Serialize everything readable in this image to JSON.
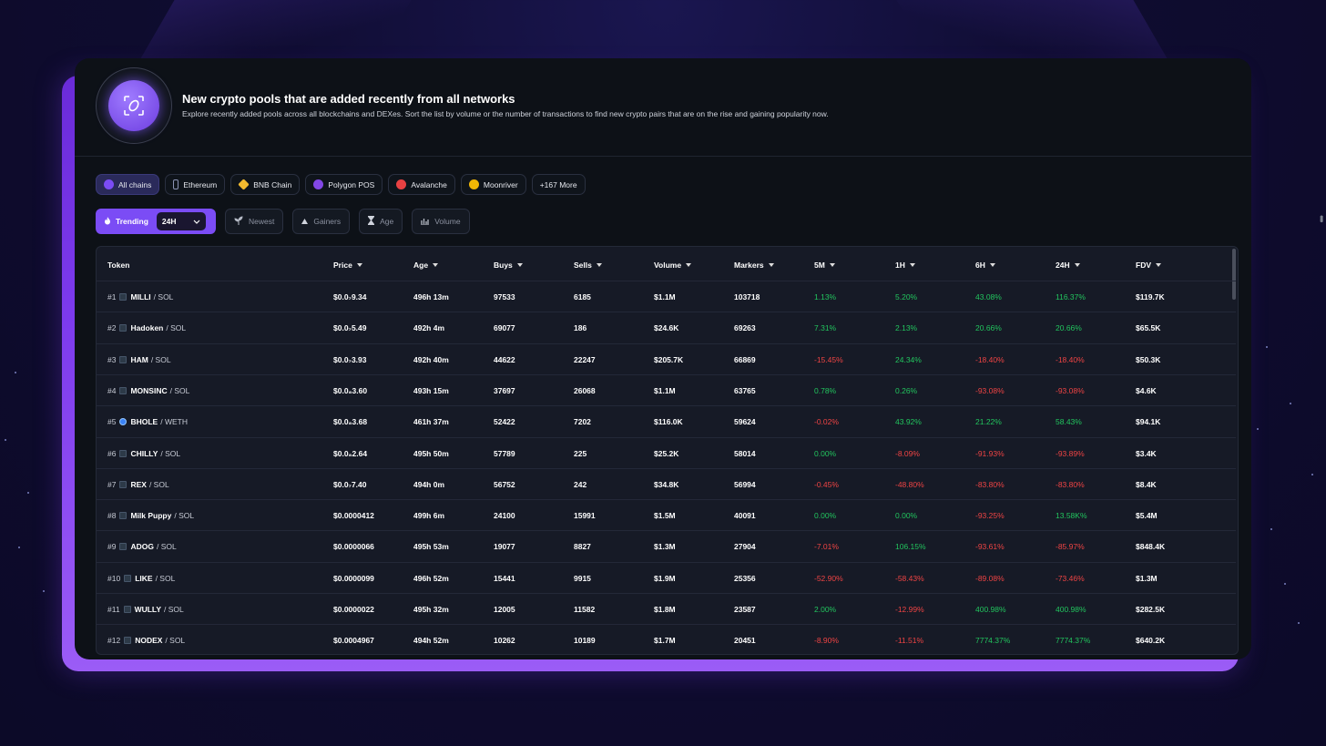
{
  "header": {
    "title": "New crypto pools that are added recently from all networks",
    "subtitle": "Explore recently added pools across all blockchains and DEXes. Sort the list by volume or the number of transactions to find new crypto pairs that are on the rise and gaining popularity now."
  },
  "chains": [
    {
      "label": "All chains",
      "icon": "all-chains-icon",
      "color": "#7b4cf5"
    },
    {
      "label": "Ethereum",
      "icon": "ethereum-icon",
      "color": "#8a92b2"
    },
    {
      "label": "BNB Chain",
      "icon": "bnb-icon",
      "color": "#f3ba2f"
    },
    {
      "label": "Polygon POS",
      "icon": "polygon-icon",
      "color": "#8247e5"
    },
    {
      "label": "Avalanche",
      "icon": "avalanche-icon",
      "color": "#e84142"
    },
    {
      "label": "Moonriver",
      "icon": "moonriver-icon",
      "color": "#f2b705"
    },
    {
      "label": "+167 More"
    }
  ],
  "filters": {
    "trending": "Trending",
    "timeframe": "24H",
    "newest": "Newest",
    "gainers": "Gainers",
    "age": "Age",
    "volume": "Volume"
  },
  "table": {
    "columns": [
      "Token",
      "Price",
      "Age",
      "Buys",
      "Sells",
      "Volume",
      "Markers",
      "5M",
      "1H",
      "6H",
      "24H",
      "FDV"
    ],
    "rows": [
      {
        "rank": "#1",
        "symbol": "MILLI",
        "quote": "/ SOL",
        "price": "$0.0₇9.34",
        "age": "496h 13m",
        "buys": "97533",
        "sells": "6185",
        "volume": "$1.1M",
        "makers": "103718",
        "m5": "1.13%",
        "h1": "5.20%",
        "h6": "43.08%",
        "h24": "116.37%",
        "fdv": "$119.7K",
        "icon": "sol"
      },
      {
        "rank": "#2",
        "symbol": "Hadoken",
        "quote": "/ SOL",
        "price": "$0.0₇5.49",
        "age": "492h 4m",
        "buys": "69077",
        "sells": "186",
        "volume": "$24.6K",
        "makers": "69263",
        "m5": "7.31%",
        "h1": "2.13%",
        "h6": "20.66%",
        "h24": "20.66%",
        "fdv": "$65.5K",
        "icon": "sol"
      },
      {
        "rank": "#3",
        "symbol": "HAM",
        "quote": "/ SOL",
        "price": "$0.0₇3.93",
        "age": "492h 40m",
        "buys": "44622",
        "sells": "22247",
        "volume": "$205.7K",
        "makers": "66869",
        "m5": "-15.45%",
        "h1": "24.34%",
        "h6": "-18.40%",
        "h24": "-18.40%",
        "fdv": "$50.3K",
        "icon": "sol"
      },
      {
        "rank": "#4",
        "symbol": "MONSINC",
        "quote": "/ SOL",
        "price": "$0.0₈3.60",
        "age": "493h 15m",
        "buys": "37697",
        "sells": "26068",
        "volume": "$1.1M",
        "makers": "63765",
        "m5": "0.78%",
        "h1": "0.26%",
        "h6": "-93.08%",
        "h24": "-93.08%",
        "fdv": "$4.6K",
        "icon": "sol"
      },
      {
        "rank": "#5",
        "symbol": "BHOLE",
        "quote": "/ WETH",
        "price": "$0.0₈3.68",
        "age": "461h 37m",
        "buys": "52422",
        "sells": "7202",
        "volume": "$116.0K",
        "makers": "59624",
        "m5": "-0.02%",
        "h1": "43.92%",
        "h6": "21.22%",
        "h24": "58.43%",
        "fdv": "$94.1K",
        "icon": "eth"
      },
      {
        "rank": "#6",
        "symbol": "CHILLY",
        "quote": "/ SOL",
        "price": "$0.0₈2.64",
        "age": "495h 50m",
        "buys": "57789",
        "sells": "225",
        "volume": "$25.2K",
        "makers": "58014",
        "m5": "0.00%",
        "h1": "-8.09%",
        "h6": "-91.93%",
        "h24": "-93.89%",
        "fdv": "$3.4K",
        "icon": "sol"
      },
      {
        "rank": "#7",
        "symbol": "REX",
        "quote": "/ SOL",
        "price": "$0.0₇7.40",
        "age": "494h 0m",
        "buys": "56752",
        "sells": "242",
        "volume": "$34.8K",
        "makers": "56994",
        "m5": "-0.45%",
        "h1": "-48.80%",
        "h6": "-83.80%",
        "h24": "-83.80%",
        "fdv": "$8.4K",
        "icon": "sol"
      },
      {
        "rank": "#8",
        "symbol": "Milk Puppy",
        "quote": "/ SOL",
        "price": "$0.0000412",
        "age": "499h 6m",
        "buys": "24100",
        "sells": "15991",
        "volume": "$1.5M",
        "makers": "40091",
        "m5": "0.00%",
        "h1": "0.00%",
        "h6": "-93.25%",
        "h24": "13.58K%",
        "fdv": "$5.4M",
        "icon": "sol"
      },
      {
        "rank": "#9",
        "symbol": "ADOG",
        "quote": "/ SOL",
        "price": "$0.0000066",
        "age": "495h 53m",
        "buys": "19077",
        "sells": "8827",
        "volume": "$1.3M",
        "makers": "27904",
        "m5": "-7.01%",
        "h1": "106.15%",
        "h6": "-93.61%",
        "h24": "-85.97%",
        "fdv": "$848.4K",
        "icon": "sol"
      },
      {
        "rank": "#10",
        "symbol": "LIKE",
        "quote": "/ SOL",
        "price": "$0.0000099",
        "age": "496h 52m",
        "buys": "15441",
        "sells": "9915",
        "volume": "$1.9M",
        "makers": "25356",
        "m5": "-52.90%",
        "h1": "-58.43%",
        "h6": "-89.08%",
        "h24": "-73.46%",
        "fdv": "$1.3M",
        "icon": "sol"
      },
      {
        "rank": "#11",
        "symbol": "WULLY",
        "quote": "/ SOL",
        "price": "$0.0000022",
        "age": "495h 32m",
        "buys": "12005",
        "sells": "11582",
        "volume": "$1.8M",
        "makers": "23587",
        "m5": "2.00%",
        "h1": "-12.99%",
        "h6": "400.98%",
        "h24": "400.98%",
        "fdv": "$282.5K",
        "icon": "sol"
      },
      {
        "rank": "#12",
        "symbol": "NODEX",
        "quote": "/ SOL",
        "price": "$0.0004967",
        "age": "494h 52m",
        "buys": "10262",
        "sells": "10189",
        "volume": "$1.7M",
        "makers": "20451",
        "m5": "-8.90%",
        "h1": "-11.51%",
        "h6": "7774.37%",
        "h24": "7774.37%",
        "fdv": "$640.2K",
        "icon": "sol"
      }
    ]
  }
}
